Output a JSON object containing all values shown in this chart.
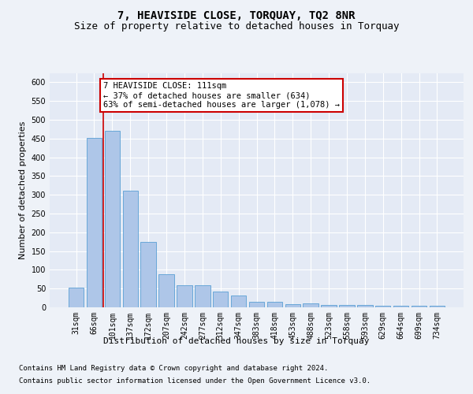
{
  "title": "7, HEAVISIDE CLOSE, TORQUAY, TQ2 8NR",
  "subtitle": "Size of property relative to detached houses in Torquay",
  "xlabel": "Distribution of detached houses by size in Torquay",
  "ylabel": "Number of detached properties",
  "categories": [
    "31sqm",
    "66sqm",
    "101sqm",
    "137sqm",
    "172sqm",
    "207sqm",
    "242sqm",
    "277sqm",
    "312sqm",
    "347sqm",
    "383sqm",
    "418sqm",
    "453sqm",
    "488sqm",
    "523sqm",
    "558sqm",
    "593sqm",
    "629sqm",
    "664sqm",
    "699sqm",
    "734sqm"
  ],
  "values": [
    52,
    452,
    470,
    310,
    175,
    88,
    58,
    58,
    43,
    31,
    15,
    15,
    8,
    10,
    7,
    7,
    7,
    4,
    4,
    4,
    5
  ],
  "bar_color": "#aec6e8",
  "bar_edge_color": "#5a9fd4",
  "annotation_text": "7 HEAVISIDE CLOSE: 111sqm\n← 37% of detached houses are smaller (634)\n63% of semi-detached houses are larger (1,078) →",
  "annotation_box_color": "#ffffff",
  "annotation_box_edge": "#cc0000",
  "vline_color": "#cc0000",
  "vline_x": 1.5,
  "ylim": [
    0,
    625
  ],
  "yticks": [
    0,
    50,
    100,
    150,
    200,
    250,
    300,
    350,
    400,
    450,
    500,
    550,
    600
  ],
  "footer1": "Contains HM Land Registry data © Crown copyright and database right 2024.",
  "footer2": "Contains public sector information licensed under the Open Government Licence v3.0.",
  "bg_color": "#eef2f8",
  "plot_bg_color": "#e4eaf5",
  "grid_color": "#ffffff",
  "title_fontsize": 10,
  "subtitle_fontsize": 9,
  "axis_label_fontsize": 8,
  "tick_fontsize": 7,
  "footer_fontsize": 6.5,
  "annotation_fontsize": 7.5
}
